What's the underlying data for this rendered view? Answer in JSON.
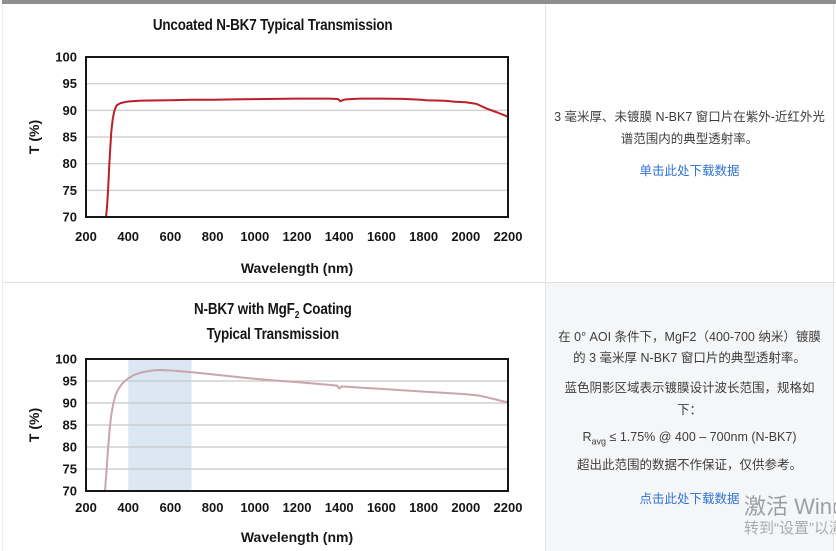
{
  "panels": {
    "top_right": {
      "description": "3 毫米厚、未镀膜 N-BK7 窗口片在紫外-近红外光谱范围内的典型透射率。",
      "link": "单击此处下载数据"
    },
    "bottom_left": {
      "title_line1_pre": "N-BK7 with MgF",
      "title_line1_sub": "2",
      "title_line1_post": " Coating",
      "title_line2": "Typical Transmission"
    },
    "bottom_right": {
      "paragraph1": "在 0° AOI 条件下，MgF2（400-700 纳米）镀膜的 3 毫米厚 N-BK7 窗口片的典型透射率。",
      "paragraph2": "蓝色阴影区域表示镀膜设计波长范围，规格如下：",
      "spec_r": "R",
      "spec_sub": "avg",
      "spec_rest": " ≤ 1.75% @ 400 – 700nm (N-BK7)",
      "paragraph3": "超出此范围的数据不作保证，仅供参考。",
      "link": "点击此处下载数据"
    }
  },
  "watermark": {
    "line1": "激活 Windows",
    "line2": "转到“设置”以激活 Windows。"
  },
  "colors": {
    "uncoated_curve": "#bb2028",
    "coated_curve": "#c8a6ab",
    "design_band": "#dbe7f3",
    "gridline": "#c8c8c8",
    "link_blue": "#2f72d4",
    "accent_bar": "#8c8e90"
  },
  "chart_data": [
    {
      "type": "line",
      "title": "Uncoated N-BK7 Typical Transmission",
      "xlabel": "Wavelength (nm)",
      "ylabel": "T (%)",
      "xlim": [
        200,
        2200
      ],
      "ylim": [
        70,
        100
      ],
      "x_ticks": [
        200,
        400,
        600,
        800,
        1000,
        1200,
        1400,
        1600,
        1800,
        2000,
        2200
      ],
      "y_ticks": [
        70,
        75,
        80,
        85,
        90,
        95,
        100
      ],
      "grid": true,
      "grid_color": "#c8c8c8",
      "line_color": "#bb2028",
      "series": [
        {
          "name": "Uncoated N-BK7",
          "x": [
            295,
            300,
            305,
            310,
            315,
            320,
            327,
            335,
            345,
            360,
            380,
            400,
            450,
            500,
            600,
            700,
            800,
            900,
            1000,
            1100,
            1200,
            1300,
            1350,
            1380,
            1395,
            1405,
            1415,
            1430,
            1500,
            1600,
            1700,
            1790,
            1810,
            1900,
            1950,
            2000,
            2050,
            2100,
            2150,
            2200
          ],
          "y": [
            70,
            72,
            75.5,
            79.5,
            83,
            86,
            88.5,
            90,
            90.9,
            91.3,
            91.5,
            91.65,
            91.8,
            91.85,
            91.9,
            92.0,
            92.0,
            92.05,
            92.1,
            92.15,
            92.2,
            92.2,
            92.2,
            92.15,
            92.1,
            91.7,
            91.9,
            92.05,
            92.2,
            92.2,
            92.15,
            92.0,
            91.9,
            91.8,
            91.6,
            91.5,
            91.2,
            90.3,
            89.6,
            88.8
          ]
        }
      ]
    },
    {
      "type": "line",
      "title": "N-BK7 with MgF2 Coating Typical Transmission",
      "xlabel": "Wavelength (nm)",
      "ylabel": "T (%)",
      "xlim": [
        200,
        2200
      ],
      "ylim": [
        70,
        100
      ],
      "x_ticks": [
        200,
        400,
        600,
        800,
        1000,
        1200,
        1400,
        1600,
        1800,
        2000,
        2200
      ],
      "y_ticks": [
        70,
        75,
        80,
        85,
        90,
        95,
        100
      ],
      "grid": true,
      "grid_color": "#c8c8c8",
      "line_color": "#c8a6ab",
      "band": {
        "x_start": 400,
        "x_end": 700,
        "color": "#dbe7f3",
        "label": "coating design wavelength range"
      },
      "series": [
        {
          "name": "N-BK7 with MgF2 coating",
          "x": [
            290,
            295,
            300,
            305,
            312,
            320,
            330,
            340,
            355,
            370,
            385,
            400,
            430,
            460,
            490,
            520,
            550,
            580,
            620,
            660,
            700,
            750,
            800,
            850,
            900,
            950,
            1000,
            1100,
            1200,
            1300,
            1360,
            1390,
            1400,
            1412,
            1450,
            1500,
            1600,
            1700,
            1800,
            1900,
            2000,
            2060,
            2100,
            2150,
            2180,
            2200
          ],
          "y": [
            70,
            73,
            76.5,
            80,
            84,
            87.3,
            90,
            91.8,
            93.3,
            94.3,
            95.0,
            95.6,
            96.4,
            96.9,
            97.2,
            97.4,
            97.5,
            97.45,
            97.35,
            97.15,
            97.0,
            96.75,
            96.5,
            96.25,
            96.0,
            95.75,
            95.5,
            95.1,
            94.75,
            94.35,
            94.1,
            93.95,
            93.3,
            93.75,
            93.65,
            93.5,
            93.2,
            92.9,
            92.6,
            92.3,
            92.0,
            91.7,
            91.3,
            90.7,
            90.35,
            90.2
          ]
        }
      ]
    }
  ]
}
